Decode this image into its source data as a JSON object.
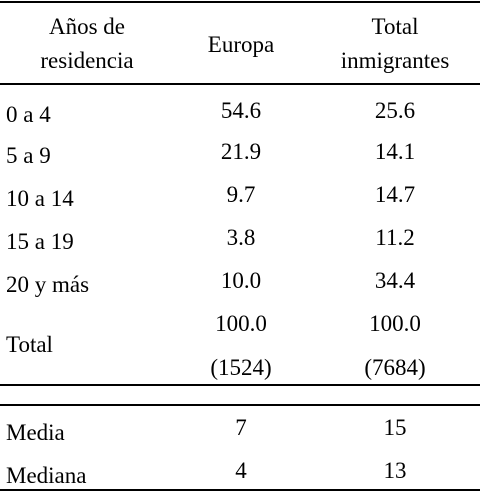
{
  "table": {
    "header": [
      "Años de residencia",
      "Europa",
      "Total inmigrantes"
    ],
    "rows": [
      [
        "0 a 4",
        "54.6",
        "25.6"
      ],
      [
        "5 a 9",
        "21.9",
        "14.1"
      ],
      [
        "10 a 14",
        "9.7",
        "14.7"
      ],
      [
        "15 a 19",
        "3.8",
        "11.2"
      ],
      [
        "20 y más",
        "10.0",
        "34.4"
      ]
    ],
    "total": {
      "label": "Total",
      "values": [
        "100.0",
        "100.0"
      ],
      "counts": [
        "(1524)",
        "(7684)"
      ]
    },
    "stats": [
      [
        "Media",
        "7",
        "15"
      ],
      [
        "Mediana",
        "4",
        "13"
      ]
    ]
  }
}
